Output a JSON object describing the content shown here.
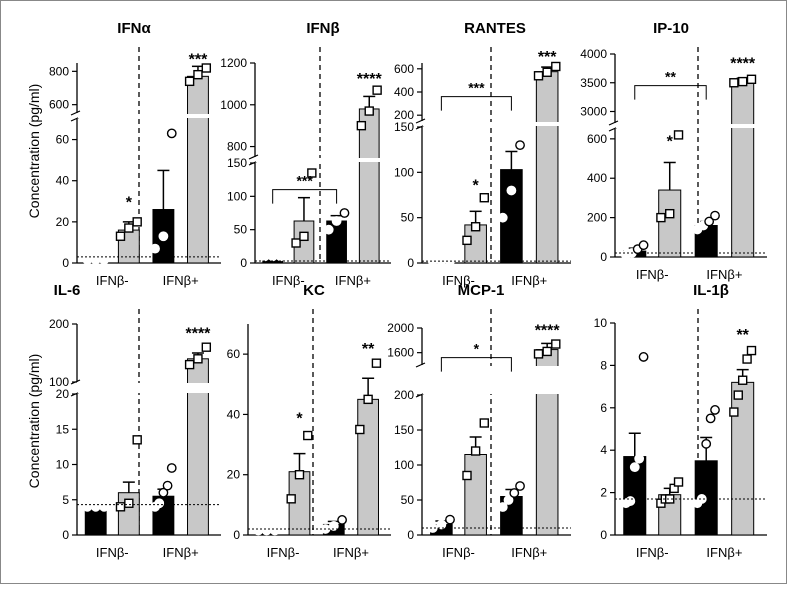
{
  "figure": {
    "ylabel": "Concentration (pg/ml)",
    "group_labels": [
      "IFNβ-",
      "IFNβ+"
    ],
    "colors": {
      "black_bar": "#000000",
      "gray_bar": "#c8c8c8",
      "axis": "#000000",
      "break": "#ffffff"
    }
  },
  "chart_data": [
    {
      "type": "bar",
      "title": "IFNα",
      "segments": [
        {
          "range": [
            0,
            70
          ],
          "ticks": [
            0,
            20,
            40,
            60
          ]
        },
        {
          "range": [
            550,
            850
          ],
          "ticks": [
            600,
            800
          ]
        }
      ],
      "bars": [
        {
          "color": "black",
          "value": 1.5,
          "err": 0.5,
          "marker": "circle",
          "points": [
            1.5,
            1.5,
            1.5
          ]
        },
        {
          "color": "gray",
          "value": 16,
          "err": 4,
          "marker": "square",
          "points": [
            13,
            17,
            20
          ]
        },
        {
          "color": "black",
          "value": 26,
          "err": 19,
          "marker": "circle",
          "points": [
            7,
            13,
            63
          ]
        },
        {
          "color": "gray",
          "value": 770,
          "err": 60,
          "marker": "square",
          "points": [
            740,
            780,
            820
          ]
        }
      ],
      "baseline": 3,
      "sig": [
        {
          "bar": 1,
          "label": "*",
          "y": 27
        },
        {
          "bar": 3,
          "label": "***",
          "y": 840
        }
      ]
    },
    {
      "type": "bar",
      "title": "IFNβ",
      "segments": [
        {
          "range": [
            0,
            150
          ],
          "ticks": [
            0,
            50,
            100,
            150
          ]
        },
        {
          "range": [
            750,
            1200
          ],
          "ticks": [
            800,
            1000,
            1200
          ]
        }
      ],
      "bars": [
        {
          "color": "black",
          "value": 10,
          "err": 2,
          "marker": "circle",
          "points": [
            10,
            10,
            10
          ]
        },
        {
          "color": "gray",
          "value": 63,
          "err": 35,
          "marker": "square",
          "points": [
            30,
            40,
            135
          ]
        },
        {
          "color": "black",
          "value": 63,
          "err": 8,
          "marker": "circle",
          "points": [
            50,
            63,
            75
          ]
        },
        {
          "color": "gray",
          "value": 980,
          "err": 60,
          "marker": "square",
          "points": [
            900,
            970,
            1070
          ]
        }
      ],
      "baseline": 3,
      "bracket": {
        "from": 0,
        "to": 2,
        "y": 110,
        "label": "***"
      },
      "sig": [
        {
          "bar": 3,
          "label": "****",
          "y": 1100
        }
      ]
    },
    {
      "type": "bar",
      "title": "RANTES",
      "segments": [
        {
          "range": [
            0,
            150
          ],
          "ticks": [
            0,
            50,
            100,
            150
          ]
        },
        {
          "range": [
            150,
            650
          ],
          "ticks": [
            200,
            400,
            600
          ]
        }
      ],
      "bars": [
        {
          "color": "black",
          "value": 2,
          "err": 1,
          "marker": "circle",
          "points": [
            2,
            2,
            2
          ]
        },
        {
          "color": "gray",
          "value": 42,
          "err": 15,
          "marker": "square",
          "points": [
            25,
            40,
            72
          ]
        },
        {
          "color": "black",
          "value": 103,
          "err": 20,
          "marker": "circle",
          "points": [
            50,
            80,
            130
          ]
        },
        {
          "color": "gray",
          "value": 575,
          "err": 40,
          "marker": "square",
          "points": [
            540,
            570,
            620
          ]
        }
      ],
      "baseline": 2,
      "bracket": {
        "from": 0,
        "to": 2,
        "y": 360,
        "label": "***"
      },
      "sig": [
        {
          "bar": 1,
          "label": "*",
          "y": 80
        },
        {
          "bar": 3,
          "label": "***",
          "y": 660
        }
      ]
    },
    {
      "type": "bar",
      "title": "IP-10",
      "segments": [
        {
          "range": [
            0,
            650
          ],
          "ticks": [
            0,
            200,
            400,
            600
          ]
        },
        {
          "range": [
            2800,
            4000
          ],
          "ticks": [
            3000,
            3500,
            4000
          ]
        }
      ],
      "bars": [
        {
          "color": "black",
          "value": 30,
          "err": 15,
          "marker": "circle",
          "points": [
            10,
            20,
            40,
            60
          ]
        },
        {
          "color": "gray",
          "value": 340,
          "err": 140,
          "marker": "square",
          "points": [
            200,
            220,
            620
          ]
        },
        {
          "color": "black",
          "value": 160,
          "err": 20,
          "marker": "circle",
          "points": [
            140,
            160,
            180,
            210
          ]
        },
        {
          "color": "gray",
          "value": 3530,
          "err": 50,
          "marker": "square",
          "points": [
            3500,
            3520,
            3560
          ]
        }
      ],
      "baseline": 20,
      "bracket": {
        "from": 0,
        "to": 2,
        "y": 3450,
        "label": "**"
      },
      "sig": [
        {
          "bar": 1,
          "label": "*",
          "y": 560
        },
        {
          "bar": 3,
          "label": "****",
          "y": 3750
        }
      ]
    },
    {
      "type": "bar",
      "title": "IL-6",
      "segments": [
        {
          "range": [
            0,
            20
          ],
          "ticks": [
            0,
            5,
            10,
            15,
            20
          ]
        },
        {
          "range": [
            100,
            200
          ],
          "ticks": [
            100,
            200
          ]
        }
      ],
      "bars": [
        {
          "color": "black",
          "value": 4,
          "err": 0.2,
          "marker": "circle",
          "points": [
            4,
            4,
            4
          ]
        },
        {
          "color": "gray",
          "value": 6,
          "err": 1.5,
          "marker": "square",
          "points": [
            4,
            4.5,
            13.5
          ]
        },
        {
          "color": "black",
          "value": 5.5,
          "err": 1,
          "marker": "circle",
          "points": [
            4,
            4.5,
            6,
            7,
            9.5
          ]
        },
        {
          "color": "gray",
          "value": 140,
          "err": 10,
          "marker": "square",
          "points": [
            130,
            140,
            160
          ]
        }
      ],
      "baseline": 4.3,
      "sig": [
        {
          "bar": 3,
          "label": "****",
          "y": 175
        }
      ]
    },
    {
      "type": "bar",
      "title": "KC",
      "segments": [
        {
          "range": [
            0,
            70
          ],
          "ticks": [
            0,
            20,
            40,
            60
          ]
        }
      ],
      "bars": [
        {
          "color": "black",
          "value": 1.5,
          "err": 0.5,
          "marker": "circle",
          "points": [
            1.5,
            1.5,
            1.5
          ]
        },
        {
          "color": "gray",
          "value": 21,
          "err": 6,
          "marker": "square",
          "points": [
            12,
            20,
            33
          ]
        },
        {
          "color": "black",
          "value": 3.5,
          "err": 1,
          "marker": "circle",
          "points": [
            2,
            3,
            5
          ]
        },
        {
          "color": "gray",
          "value": 45,
          "err": 7,
          "marker": "square",
          "points": [
            35,
            45,
            57
          ]
        }
      ],
      "baseline": 2,
      "sig": [
        {
          "bar": 1,
          "label": "*",
          "y": 37
        },
        {
          "bar": 3,
          "label": "**",
          "y": 60
        }
      ]
    },
    {
      "type": "bar",
      "title": "MCP-1",
      "segments": [
        {
          "range": [
            0,
            200
          ],
          "ticks": [
            0,
            50,
            100,
            150,
            200
          ]
        },
        {
          "range": [
            1400,
            2000
          ],
          "ticks": [
            1600,
            2000
          ]
        }
      ],
      "bars": [
        {
          "color": "black",
          "value": 15,
          "err": 5,
          "marker": "circle",
          "points": [
            10,
            15,
            22
          ]
        },
        {
          "color": "gray",
          "value": 115,
          "err": 25,
          "marker": "square",
          "points": [
            85,
            120,
            160
          ]
        },
        {
          "color": "black",
          "value": 55,
          "err": 10,
          "marker": "circle",
          "points": [
            40,
            50,
            60,
            70
          ]
        },
        {
          "color": "gray",
          "value": 1650,
          "err": 100,
          "marker": "square",
          "points": [
            1580,
            1620,
            1740
          ]
        }
      ],
      "baseline": 10,
      "bracket": {
        "from": 0,
        "to": 2,
        "y": 1520,
        "label": "*"
      },
      "sig": [
        {
          "bar": 3,
          "label": "****",
          "y": 1880
        }
      ]
    },
    {
      "type": "bar",
      "title": "IL-1β",
      "segments": [
        {
          "range": [
            0,
            10
          ],
          "ticks": [
            0,
            2,
            4,
            6,
            8,
            10
          ]
        }
      ],
      "bars": [
        {
          "color": "black",
          "value": 3.7,
          "err": 1.1,
          "marker": "circle",
          "points": [
            1.5,
            1.6,
            3.2,
            3.6,
            8.4
          ]
        },
        {
          "color": "gray",
          "value": 1.9,
          "err": 0.3,
          "marker": "square",
          "points": [
            1.5,
            1.7,
            1.7,
            2.2,
            2.5
          ]
        },
        {
          "color": "black",
          "value": 3.5,
          "err": 1.1,
          "marker": "circle",
          "points": [
            1.5,
            1.7,
            4.3,
            5.5,
            5.9
          ]
        },
        {
          "color": "gray",
          "value": 7.2,
          "err": 0.6,
          "marker": "square",
          "points": [
            5.8,
            6.6,
            7.3,
            8.3,
            8.7
          ]
        }
      ],
      "baseline": 1.7,
      "sig": [
        {
          "bar": 3,
          "label": "**",
          "y": 9.2
        }
      ]
    }
  ]
}
